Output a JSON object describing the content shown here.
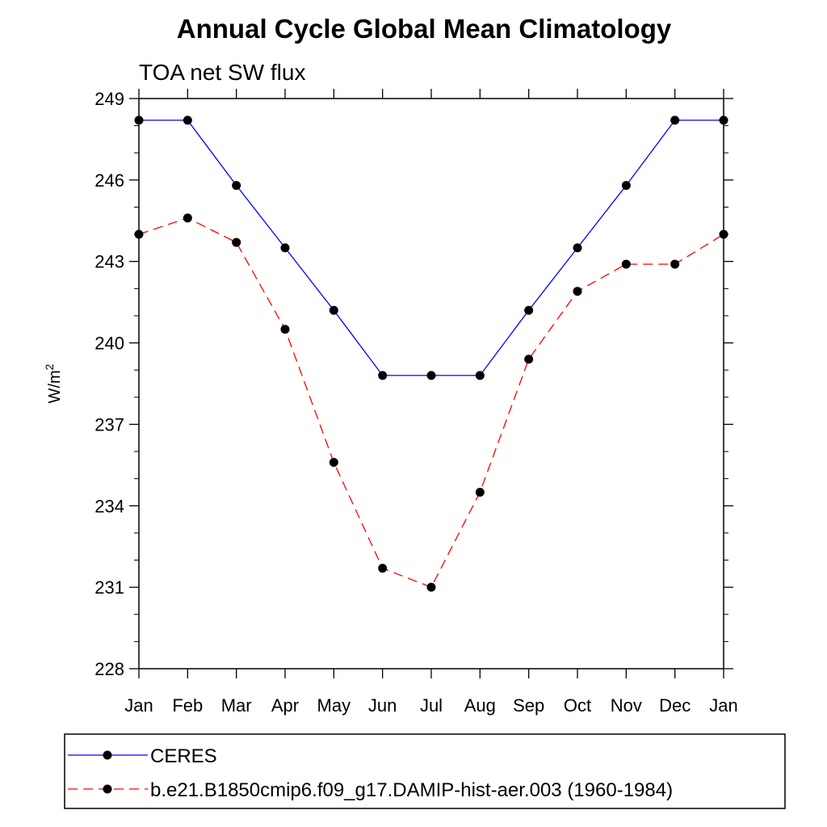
{
  "chart_data": {
    "type": "line",
    "title": "Annual Cycle Global Mean Climatology",
    "subtitle": "TOA net SW flux",
    "xlabel": "",
    "ylabel": "W/m",
    "ylabel_superscript": "2",
    "categories": [
      "Jan",
      "Feb",
      "Mar",
      "Apr",
      "May",
      "Jun",
      "Jul",
      "Aug",
      "Sep",
      "Oct",
      "Nov",
      "Dec",
      "Jan"
    ],
    "ylim": [
      228,
      249
    ],
    "yticks": [
      228,
      231,
      234,
      237,
      240,
      243,
      246,
      249
    ],
    "ytick_labels": [
      "228",
      "231",
      "234",
      "237",
      "240",
      "243",
      "246",
      "249"
    ],
    "grid": false,
    "legend_position": "bottom",
    "series": [
      {
        "name": "CERES",
        "color": "#0000ff",
        "line_style": "solid",
        "marker": "filled-circle",
        "values": [
          248.2,
          248.2,
          245.8,
          243.5,
          241.2,
          238.8,
          238.8,
          238.8,
          241.2,
          243.5,
          245.8,
          248.2,
          248.2
        ]
      },
      {
        "name": "b.e21.B1850cmip6.f09_g17.DAMIP-hist-aer.003 (1960-1984)",
        "color": "#ff0000",
        "line_style": "dashed",
        "marker": "filled-circle",
        "values": [
          244.0,
          244.6,
          243.7,
          240.5,
          235.6,
          231.7,
          231.0,
          234.5,
          239.4,
          241.9,
          242.9,
          242.9,
          244.0
        ]
      }
    ]
  }
}
